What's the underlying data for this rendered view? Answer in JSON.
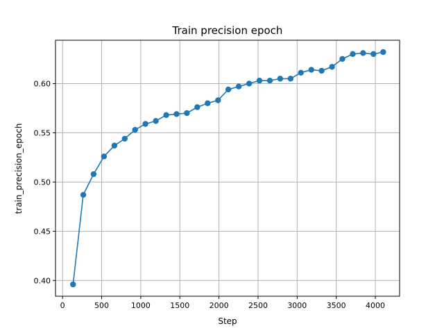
{
  "chart_data": {
    "type": "line",
    "title": "Train precision epoch",
    "xlabel": "Step",
    "ylabel": "train_precision_epoch",
    "xlim": [
      -90,
      4310
    ],
    "ylim": [
      0.384,
      0.644
    ],
    "xticks": [
      0,
      500,
      1000,
      1500,
      2000,
      2500,
      3000,
      3500,
      4000
    ],
    "yticks": [
      0.4,
      0.45,
      0.5,
      0.55,
      0.6
    ],
    "ytick_labels": [
      "0.40",
      "0.45",
      "0.50",
      "0.55",
      "0.60"
    ],
    "grid": true,
    "legend": "none",
    "color": "#1f77b4",
    "marker": "circle",
    "series": [
      {
        "x": [
          134,
          265,
          397,
          530,
          663,
          795,
          928,
          1060,
          1193,
          1326,
          1458,
          1590,
          1723,
          1855,
          1988,
          2120,
          2253,
          2386,
          2518,
          2651,
          2783,
          2916,
          3048,
          3181,
          3313,
          3446,
          3578,
          3711,
          3843,
          3976,
          4100
        ],
        "y": [
          0.396,
          0.487,
          0.508,
          0.526,
          0.537,
          0.544,
          0.553,
          0.559,
          0.562,
          0.568,
          0.569,
          0.57,
          0.576,
          0.58,
          0.583,
          0.594,
          0.597,
          0.6,
          0.603,
          0.603,
          0.605,
          0.605,
          0.611,
          0.614,
          0.613,
          0.617,
          0.625,
          0.63,
          0.631,
          0.63,
          0.632
        ]
      }
    ]
  }
}
